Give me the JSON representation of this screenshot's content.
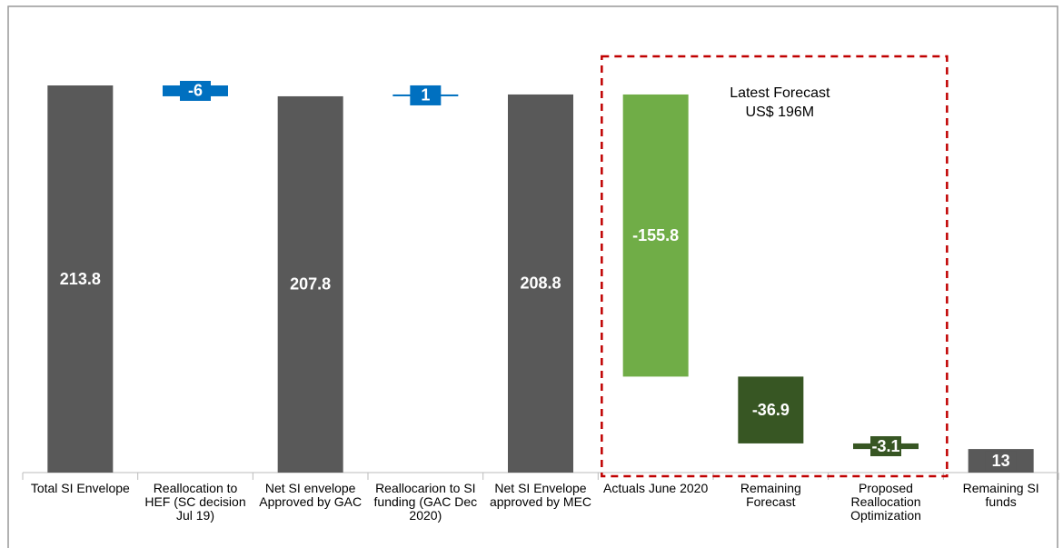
{
  "chart_data": {
    "type": "waterfall",
    "categories": [
      "Total SI Envelope",
      "Reallocation to HEF (SC decision Jul 19)",
      "Net SI envelope Approved by GAC",
      "Reallocarion to SI funding (GAC Dec 2020)",
      "Net SI Envelope approved by MEC",
      "Actuals June 2020",
      "Remaining Forecast",
      "Proposed Reallocation Optimization",
      "Remaining SI funds"
    ],
    "values": [
      213.8,
      -6,
      207.8,
      1,
      208.8,
      -155.8,
      -36.9,
      -3.1,
      13
    ],
    "measures": [
      "total",
      "relative",
      "total",
      "relative",
      "total",
      "relative",
      "relative",
      "relative",
      "total"
    ],
    "colors": [
      "#595959",
      "#0070c0",
      "#595959",
      "#0070c0",
      "#595959",
      "#70ad47",
      "#375623",
      "#375623",
      "#595959"
    ],
    "annotation": "Latest Forecast US$ 196M",
    "annotation_range": [
      "Actuals June 2020",
      "Proposed Reallocation Optimization"
    ]
  }
}
